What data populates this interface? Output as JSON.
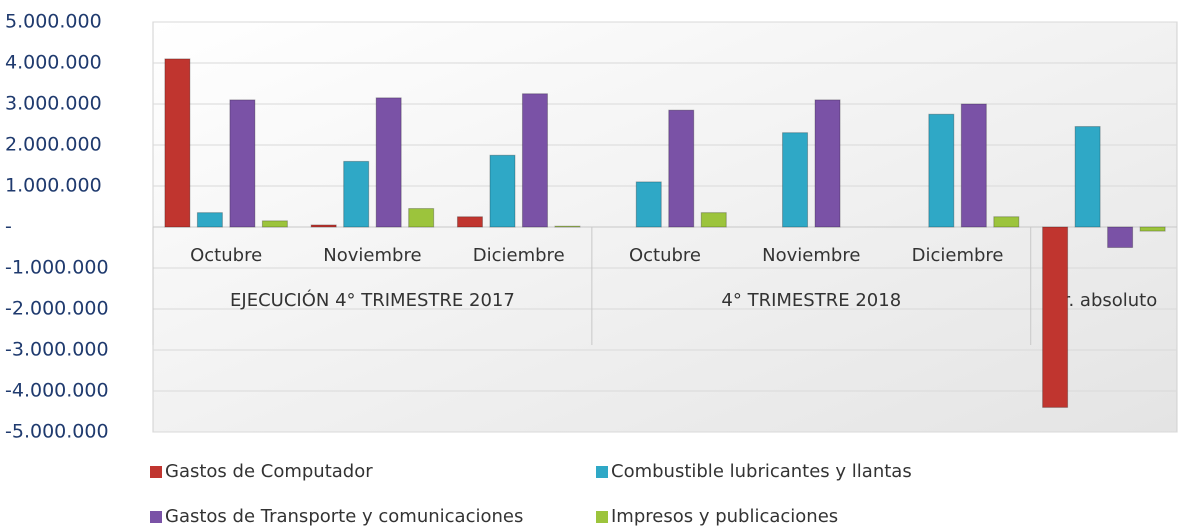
{
  "chart_data": {
    "type": "bar",
    "categories": [
      "Octubre",
      "Noviembre",
      "Diciembre",
      "Octubre",
      "Noviembre",
      "Diciembre",
      null
    ],
    "group_labels": [
      "EJECUCIÓN 4° TRIMESTRE 2017",
      "4° TRIMESTRE 2018",
      "Vr. absoluto"
    ],
    "group_sizes": [
      3,
      3,
      1
    ],
    "series": [
      {
        "name": "Gastos de Computador",
        "color": "#c0352f",
        "values": [
          4100000,
          50000,
          250000,
          0,
          0,
          0,
          -4400000
        ]
      },
      {
        "name": "Combustible lubricantes y llantas",
        "color": "#2fa8c6",
        "values": [
          350000,
          1600000,
          1750000,
          1100000,
          2300000,
          2750000,
          2450000
        ]
      },
      {
        "name": "Gastos de Transporte y comunicaciones",
        "color": "#7a52a6",
        "values": [
          3100000,
          3150000,
          3250000,
          2850000,
          3100000,
          3000000,
          -500000
        ]
      },
      {
        "name": "Impresos y publicaciones",
        "color": "#9cc43c",
        "values": [
          150000,
          450000,
          20000,
          350000,
          0,
          250000,
          -100000
        ]
      }
    ],
    "ylim": [
      -5000000,
      5000000
    ],
    "yticks": [
      {
        "value": -5000000,
        "label": "-5.000.000"
      },
      {
        "value": -4000000,
        "label": "-4.000.000"
      },
      {
        "value": -3000000,
        "label": "-3.000.000"
      },
      {
        "value": -2000000,
        "label": "-2.000.000"
      },
      {
        "value": -1000000,
        "label": "-1.000.000"
      },
      {
        "value": 0,
        "label": "-"
      },
      {
        "value": 1000000,
        "label": "1.000.000"
      },
      {
        "value": 2000000,
        "label": "2.000.000"
      },
      {
        "value": 3000000,
        "label": "3.000.000"
      },
      {
        "value": 4000000,
        "label": "4.000.000"
      },
      {
        "value": 5000000,
        "label": "5.000.000"
      }
    ],
    "grid": true,
    "legend": "bottom"
  }
}
